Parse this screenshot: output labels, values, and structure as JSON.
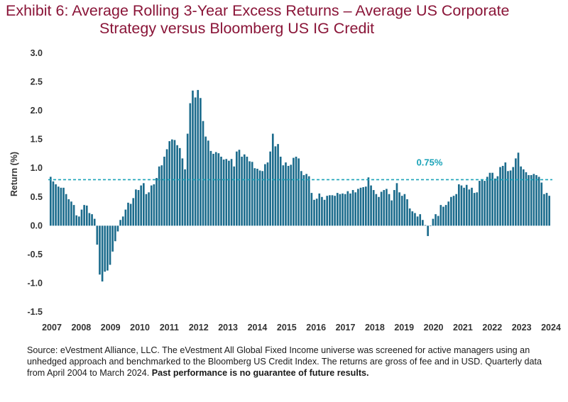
{
  "header": {
    "title_line1": "Exhibit 6: Average Rolling 3-Year Excess Returns – Average US Corporate",
    "title_line2": "Strategy versus Bloomberg US IG Credit"
  },
  "footer": {
    "source_text": "Source: eVestment Alliance, LLC. The eVestment All Global Fixed Income universe was screened for active managers using an unhedged approach and benchmarked to the Bloomberg US Credit Index. The returns are gross of fee and in USD. Quarterly data from April 2004 to March 2024. ",
    "disclaimer": "Past performance is no guarantee of future results."
  },
  "colors": {
    "title": "#8a1538",
    "bar": "#1b6b8c",
    "reference_line": "#1aa3b8",
    "reference_label": "#1aa3b8",
    "axis_text": "#333333"
  },
  "chart_data": {
    "type": "bar",
    "ylabel": "Return (%)",
    "ylim": [
      -1.5,
      3.0
    ],
    "yticks": [
      3.0,
      2.5,
      2.0,
      1.5,
      1.0,
      0.5,
      0.0,
      -0.5,
      -1.0,
      -1.5
    ],
    "ytick_labels": [
      "3.0",
      "2.5",
      "2.0",
      "1.5",
      "1.0",
      "0.5",
      "0.0",
      "-0.5",
      "-1.0",
      "-1.5"
    ],
    "x_tick_labels": [
      "2007",
      "2008",
      "2009",
      "2010",
      "2011",
      "2012",
      "2013",
      "2014",
      "2015",
      "2016",
      "2017",
      "2018",
      "2019",
      "2020",
      "2021",
      "2022",
      "2023",
      "2024"
    ],
    "x_start_year": 2007,
    "x_end_year": 2024,
    "reference_line": {
      "value": 0.8,
      "label": "0.75%"
    },
    "grid": false,
    "values": [
      0.85,
      0.77,
      0.72,
      0.68,
      0.66,
      0.66,
      0.55,
      0.46,
      0.42,
      0.36,
      0.18,
      0.16,
      0.28,
      0.36,
      0.35,
      0.22,
      0.2,
      0.12,
      -0.33,
      -0.85,
      -0.97,
      -0.8,
      -0.78,
      -0.68,
      -0.45,
      -0.27,
      -0.1,
      0.1,
      0.16,
      0.28,
      0.4,
      0.38,
      0.48,
      0.63,
      0.62,
      0.7,
      0.74,
      0.55,
      0.58,
      0.7,
      0.72,
      0.83,
      1.03,
      1.05,
      1.2,
      1.33,
      1.47,
      1.5,
      1.49,
      1.4,
      1.35,
      1.17,
      0.98,
      1.6,
      2.13,
      2.35,
      2.23,
      2.36,
      2.22,
      1.82,
      1.55,
      1.48,
      1.3,
      1.25,
      1.28,
      1.26,
      1.2,
      1.15,
      1.16,
      1.13,
      1.16,
      1.03,
      1.29,
      1.32,
      1.2,
      1.24,
      1.2,
      1.12,
      1.11,
      1.0,
      0.99,
      0.96,
      0.95,
      1.07,
      1.1,
      1.29,
      1.6,
      1.38,
      1.42,
      1.2,
      1.05,
      1.1,
      1.04,
      1.06,
      1.18,
      1.2,
      1.17,
      0.95,
      0.88,
      0.9,
      0.86,
      0.57,
      0.45,
      0.47,
      0.56,
      0.5,
      0.45,
      0.52,
      0.53,
      0.53,
      0.52,
      0.57,
      0.55,
      0.56,
      0.55,
      0.6,
      0.56,
      0.62,
      0.58,
      0.64,
      0.66,
      0.67,
      0.68,
      0.84,
      0.7,
      0.62,
      0.55,
      0.5,
      0.59,
      0.62,
      0.64,
      0.55,
      0.44,
      0.62,
      0.74,
      0.58,
      0.52,
      0.55,
      0.46,
      0.3,
      0.25,
      0.22,
      0.16,
      0.2,
      0.1,
      0.01,
      -0.18,
      0.0,
      0.12,
      0.2,
      0.17,
      0.36,
      0.33,
      0.36,
      0.42,
      0.5,
      0.52,
      0.55,
      0.72,
      0.7,
      0.66,
      0.71,
      0.63,
      0.66,
      0.57,
      0.58,
      0.78,
      0.8,
      0.78,
      0.85,
      0.92,
      0.92,
      0.82,
      0.86,
      1.02,
      1.04,
      1.1,
      0.95,
      0.96,
      1.02,
      1.17,
      1.27,
      1.03,
      0.98,
      0.93,
      0.88,
      0.88,
      0.9,
      0.88,
      0.85,
      0.75,
      0.55,
      0.57,
      0.52
    ]
  }
}
